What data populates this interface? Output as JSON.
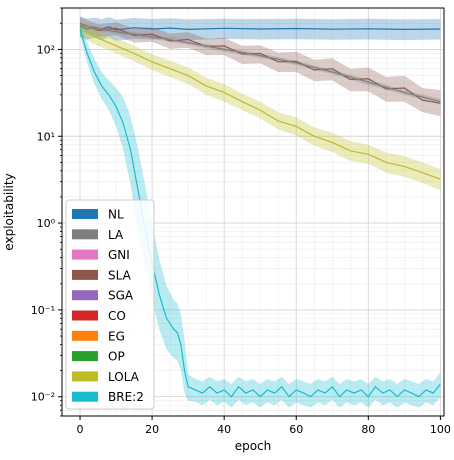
{
  "chart_data": {
    "type": "line",
    "xlabel": "epoch",
    "ylabel": "exploitability",
    "xlim": [
      -5,
      101
    ],
    "ylim": [
      0.006,
      300
    ],
    "yscale": "log",
    "grid": true,
    "legend_position": "lower-left",
    "x_ticks": [
      0,
      20,
      40,
      60,
      80,
      100
    ],
    "x_tick_labels": [
      "0",
      "20",
      "40",
      "60",
      "80",
      "100"
    ],
    "y_ticks": [
      0.01,
      0.1,
      1,
      10,
      100
    ],
    "y_tick_labels": [
      "10⁻²",
      "10⁻¹",
      "10⁰",
      "10¹",
      "10²"
    ],
    "legend": [
      {
        "name": "NL",
        "color": "#1f77b4"
      },
      {
        "name": "LA",
        "color": "#7f7f7f"
      },
      {
        "name": "GNI",
        "color": "#e377c2"
      },
      {
        "name": "SLA",
        "color": "#8c564b"
      },
      {
        "name": "SGA",
        "color": "#9467bd"
      },
      {
        "name": "CO",
        "color": "#d62728"
      },
      {
        "name": "EG",
        "color": "#ff7f0e"
      },
      {
        "name": "OP",
        "color": "#2ca02c"
      },
      {
        "name": "LOLA",
        "color": "#bcbd22"
      },
      {
        "name": "BRE:2",
        "color": "#17becf"
      }
    ],
    "series": [
      {
        "name": "NL",
        "color": "#1f77b4",
        "x": [
          0,
          2,
          4,
          6,
          8,
          10,
          15,
          20,
          25,
          30,
          40,
          50,
          60,
          70,
          80,
          90,
          100
        ],
        "y": [
          185,
          172,
          180,
          170,
          182,
          168,
          178,
          172,
          176,
          170,
          175,
          172,
          174,
          171,
          173,
          170,
          172
        ],
        "lower": [
          140,
          130,
          136,
          128,
          138,
          126,
          132,
          130,
          133,
          128,
          132,
          130,
          131,
          129,
          130,
          128,
          130
        ],
        "upper": [
          240,
          225,
          233,
          222,
          236,
          220,
          230,
          224,
          228,
          222,
          226,
          224,
          226,
          223,
          225,
          222,
          224
        ]
      },
      {
        "name": "SLA",
        "color": "#8c564b",
        "x": [
          0,
          5,
          10,
          15,
          20,
          25,
          30,
          35,
          40,
          45,
          50,
          55,
          60,
          65,
          70,
          75,
          80,
          85,
          90,
          95,
          100
        ],
        "y": [
          200,
          165,
          175,
          145,
          150,
          125,
          130,
          108,
          110,
          88,
          90,
          72,
          73,
          58,
          60,
          45,
          46,
          35,
          36,
          26,
          24
        ],
        "lower": [
          170,
          140,
          145,
          120,
          122,
          102,
          104,
          86,
          86,
          68,
          69,
          55,
          55,
          43,
          44,
          33,
          33,
          25,
          25,
          19,
          17
        ],
        "upper": [
          235,
          195,
          205,
          175,
          180,
          152,
          158,
          133,
          136,
          110,
          112,
          92,
          94,
          76,
          79,
          60,
          62,
          48,
          50,
          36,
          34
        ]
      },
      {
        "name": "LA",
        "color": "#7f7f7f",
        "x": [
          0,
          10,
          20,
          30,
          40,
          50,
          60,
          70,
          80,
          90,
          100
        ],
        "y": [
          190,
          160,
          140,
          120,
          100,
          85,
          70,
          55,
          42,
          32,
          25
        ],
        "lower": [
          180,
          152,
          132,
          113,
          94,
          80,
          66,
          52,
          39,
          30,
          23
        ],
        "upper": [
          200,
          168,
          148,
          127,
          106,
          90,
          74,
          58,
          45,
          34,
          27
        ]
      },
      {
        "name": "LOLA",
        "color": "#bcbd22",
        "x": [
          0,
          5,
          10,
          15,
          20,
          25,
          30,
          35,
          40,
          45,
          50,
          55,
          60,
          65,
          70,
          75,
          80,
          85,
          90,
          95,
          100
        ],
        "y": [
          170,
          135,
          110,
          90,
          72,
          60,
          50,
          38,
          32,
          25,
          20,
          15,
          13,
          10,
          8.5,
          6.8,
          6.2,
          5.0,
          4.5,
          3.8,
          3.2
        ],
        "lower": [
          140,
          110,
          90,
          73,
          58,
          48,
          40,
          30,
          25,
          20,
          16,
          12,
          10.2,
          7.8,
          6.6,
          5.2,
          4.8,
          3.8,
          3.4,
          2.9,
          2.4
        ],
        "upper": [
          205,
          165,
          135,
          110,
          88,
          74,
          62,
          47,
          40,
          31,
          25,
          19,
          16.5,
          12.7,
          11,
          8.8,
          8.0,
          6.5,
          5.9,
          5.0,
          4.2
        ]
      },
      {
        "name": "BRE:2",
        "color": "#17becf",
        "x": [
          0,
          2,
          4,
          6,
          8,
          10,
          12,
          14,
          16,
          18,
          20,
          22,
          24,
          26,
          27,
          28,
          29,
          30,
          32,
          34,
          36,
          38,
          40,
          42,
          44,
          46,
          48,
          50,
          52,
          54,
          56,
          58,
          60,
          62,
          64,
          66,
          68,
          70,
          72,
          74,
          76,
          78,
          80,
          82,
          84,
          86,
          88,
          90,
          92,
          94,
          96,
          98,
          100
        ],
        "y": [
          170,
          90,
          55,
          38,
          30,
          22,
          14,
          7,
          2.5,
          0.9,
          0.35,
          0.15,
          0.08,
          0.06,
          0.055,
          0.04,
          0.02,
          0.013,
          0.012,
          0.011,
          0.013,
          0.011,
          0.012,
          0.01,
          0.013,
          0.011,
          0.012,
          0.01,
          0.012,
          0.011,
          0.013,
          0.01,
          0.012,
          0.011,
          0.01,
          0.012,
          0.011,
          0.013,
          0.01,
          0.012,
          0.011,
          0.012,
          0.01,
          0.013,
          0.011,
          0.012,
          0.01,
          0.012,
          0.011,
          0.01,
          0.012,
          0.011,
          0.014
        ],
        "lower": [
          150,
          70,
          40,
          27,
          20,
          13,
          7,
          2.8,
          0.8,
          0.3,
          0.13,
          0.06,
          0.035,
          0.028,
          0.026,
          0.02,
          0.011,
          0.009,
          0.0088,
          0.008,
          0.0092,
          0.008,
          0.0088,
          0.0075,
          0.0092,
          0.008,
          0.0086,
          0.0075,
          0.0086,
          0.008,
          0.0092,
          0.0075,
          0.0086,
          0.008,
          0.0075,
          0.0086,
          0.008,
          0.0092,
          0.0075,
          0.0086,
          0.008,
          0.0086,
          0.0075,
          0.0092,
          0.008,
          0.0086,
          0.0075,
          0.0086,
          0.008,
          0.0075,
          0.0086,
          0.008,
          0.0098
        ],
        "upper": [
          195,
          120,
          78,
          55,
          44,
          36,
          28,
          17,
          7.5,
          2.8,
          1.0,
          0.38,
          0.19,
          0.13,
          0.12,
          0.09,
          0.045,
          0.018,
          0.016,
          0.015,
          0.017,
          0.015,
          0.016,
          0.014,
          0.017,
          0.015,
          0.016,
          0.014,
          0.016,
          0.015,
          0.017,
          0.014,
          0.016,
          0.015,
          0.014,
          0.016,
          0.015,
          0.017,
          0.014,
          0.016,
          0.015,
          0.016,
          0.014,
          0.017,
          0.015,
          0.016,
          0.014,
          0.016,
          0.015,
          0.014,
          0.016,
          0.015,
          0.019
        ]
      }
    ]
  }
}
